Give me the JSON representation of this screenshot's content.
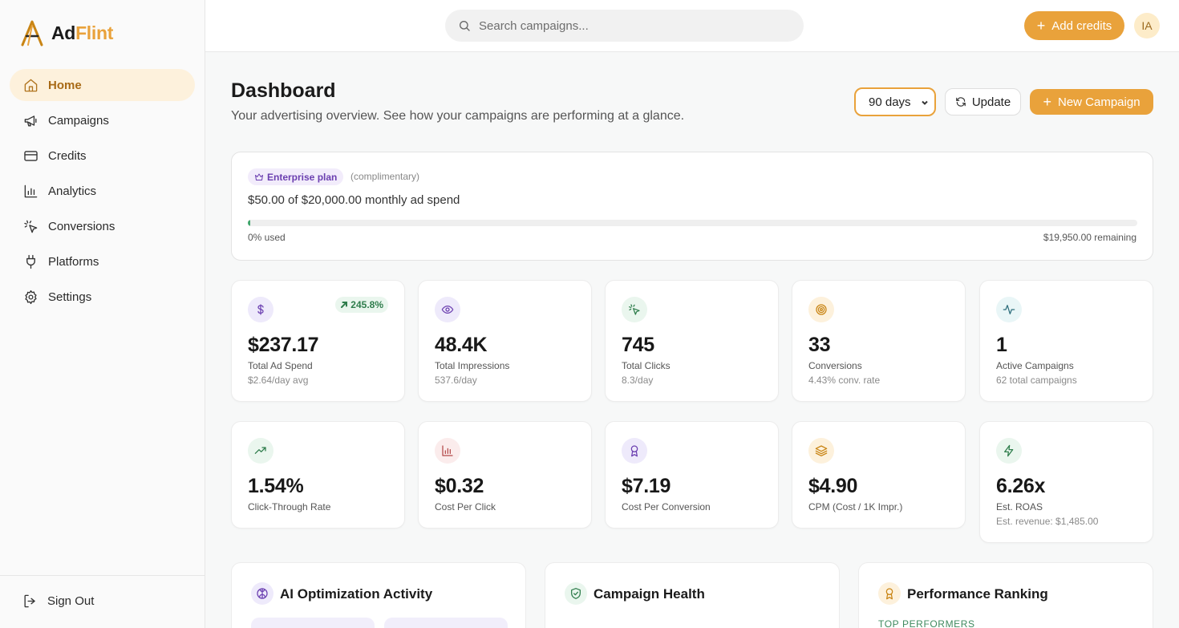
{
  "brand": {
    "name_part1": "Ad",
    "name_part2": "Flint",
    "accent": "#e9a23b"
  },
  "sidebar": {
    "items": [
      {
        "label": "Home",
        "icon": "home-icon",
        "active": true
      },
      {
        "label": "Campaigns",
        "icon": "megaphone-icon"
      },
      {
        "label": "Credits",
        "icon": "credit-card-icon"
      },
      {
        "label": "Analytics",
        "icon": "bar-chart-icon"
      },
      {
        "label": "Conversions",
        "icon": "cursor-click-icon"
      },
      {
        "label": "Platforms",
        "icon": "plug-icon"
      },
      {
        "label": "Settings",
        "icon": "gear-icon"
      }
    ],
    "sign_out": "Sign Out"
  },
  "topbar": {
    "search_placeholder": "Search campaigns...",
    "add_credits": "Add credits",
    "avatar_initials": "IA"
  },
  "header": {
    "title": "Dashboard",
    "subtitle": "Your advertising overview. See how your campaigns are performing at a glance.",
    "range_value": "90 days",
    "update_label": "Update",
    "new_campaign_label": "New Campaign"
  },
  "plan": {
    "badge": "Enterprise plan",
    "note": "(complimentary)",
    "spend_text": "$50.00 of $20,000.00 monthly ad spend",
    "used_fraction": 0.0025,
    "used_text": "0% used",
    "remaining_text": "$19,950.00 remaining",
    "progress_color": "#3fa56b"
  },
  "stats_row1": [
    {
      "icon": "dollar-icon",
      "value": "$237.17",
      "label": "Total Ad Spend",
      "sub": "$2.64/day avg",
      "badge": "245.8%",
      "icon_bg": "#eeeafb",
      "icon_color": "#6b3fb0"
    },
    {
      "icon": "eye-icon",
      "value": "48.4K",
      "label": "Total Impressions",
      "sub": "537.6/day",
      "icon_bg": "#eeeafb",
      "icon_color": "#6b3fb0"
    },
    {
      "icon": "cursor-click-icon",
      "value": "745",
      "label": "Total Clicks",
      "sub": "8.3/day",
      "icon_bg": "#eaf6ee",
      "icon_color": "#2f7d4c"
    },
    {
      "icon": "target-icon",
      "value": "33",
      "label": "Conversions",
      "sub": "4.43% conv. rate",
      "icon_bg": "#fdf1dc",
      "icon_color": "#c98515"
    },
    {
      "icon": "activity-icon",
      "value": "1",
      "label": "Active Campaigns",
      "sub": "62 total campaigns",
      "icon_bg": "#e9f6f7",
      "icon_color": "#2f6f7d"
    }
  ],
  "stats_row2": [
    {
      "icon": "trending-up-icon",
      "value": "1.54%",
      "label": "Click-Through Rate",
      "sub": "",
      "icon_bg": "#eaf6ee",
      "icon_color": "#2f7d4c"
    },
    {
      "icon": "bar-chart-icon",
      "value": "$0.32",
      "label": "Cost Per Click",
      "sub": "",
      "icon_bg": "#fbecec",
      "icon_color": "#b44a4a"
    },
    {
      "icon": "award-icon",
      "value": "$7.19",
      "label": "Cost Per Conversion",
      "sub": "",
      "icon_bg": "#eeeafb",
      "icon_color": "#6b3fb0"
    },
    {
      "icon": "layers-icon",
      "value": "$4.90",
      "label": "CPM (Cost / 1K Impr.)",
      "sub": "",
      "icon_bg": "#fdf1dc",
      "icon_color": "#c98515"
    },
    {
      "icon": "zap-icon",
      "value": "6.26x",
      "label": "Est. ROAS",
      "sub": "Est. revenue: $1,485.00",
      "icon_bg": "#eaf6ee",
      "icon_color": "#2f7d4c"
    }
  ],
  "panels": [
    {
      "title": "AI Optimization Activity",
      "icon": "brain-icon",
      "icon_bg": "#eeeafb",
      "icon_color": "#6b3fb0"
    },
    {
      "title": "Campaign Health",
      "icon": "shield-check-icon",
      "icon_bg": "#eaf6ee",
      "icon_color": "#2f7d4c"
    },
    {
      "title": "Performance Ranking",
      "icon": "award-icon",
      "icon_bg": "#fdf1dc",
      "icon_color": "#c98515",
      "caption": "TOP PERFORMERS"
    }
  ]
}
